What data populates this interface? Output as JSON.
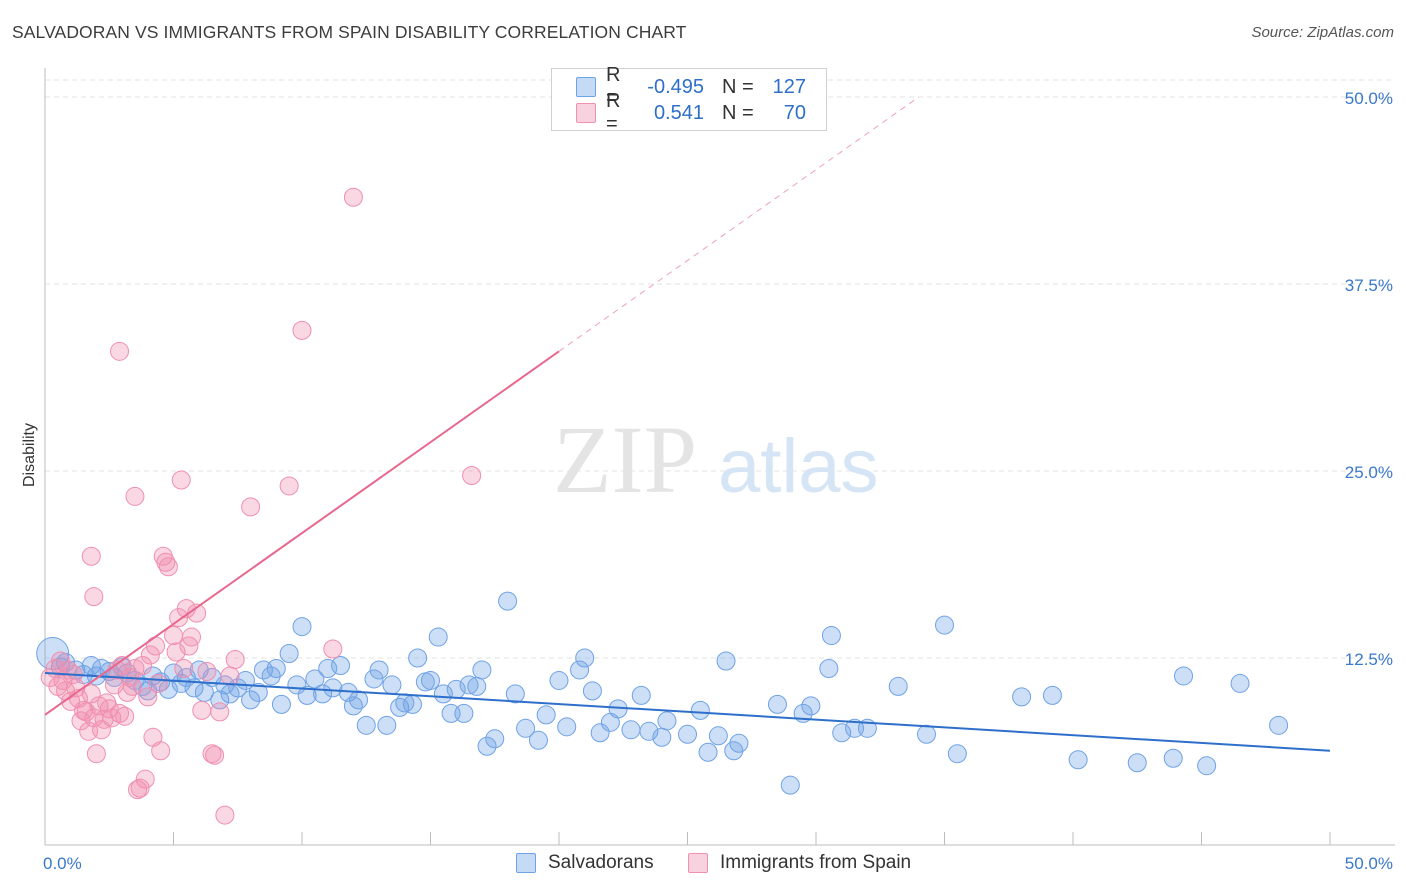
{
  "title": "SALVADORAN VS IMMIGRANTS FROM SPAIN DISABILITY CORRELATION CHART",
  "source": "Source: ZipAtlas.com",
  "watermark": {
    "zip": "ZIP",
    "atlas": "atlas"
  },
  "legend": {
    "rows": [
      {
        "r_label": "R =",
        "r_value": "-0.495",
        "n_label": "N =",
        "n_value": "127",
        "color": "#6fa2e6"
      },
      {
        "r_label": "R =",
        "r_value": "0.541",
        "n_label": "N =",
        "n_value": "70",
        "color": "#f08fb0"
      }
    ]
  },
  "bottom_legend": [
    {
      "label": "Salvadorans",
      "color": "#6fa2e6"
    },
    {
      "label": "Immigrants from Spain",
      "color": "#f08fb0"
    }
  ],
  "chart_data": {
    "type": "scatter",
    "title": "SALVADORAN VS IMMIGRANTS FROM SPAIN DISABILITY CORRELATION CHART",
    "xlabel": "",
    "ylabel": "Disability",
    "xlim": [
      0,
      50
    ],
    "ylim": [
      0,
      50
    ],
    "x_tick_labels": [
      "0.0%",
      "50.0%"
    ],
    "y_tick_labels": [
      "12.5%",
      "25.0%",
      "37.5%",
      "50.0%"
    ],
    "y_ticks": [
      12.5,
      25,
      37.5,
      50
    ],
    "grid": true,
    "series": [
      {
        "name": "Salvadorans",
        "color": "#6fa2e6",
        "line_color": "#2e6fcb",
        "trend": {
          "x0": 0,
          "y0": 11.5,
          "x1": 50,
          "y1": 6.3
        },
        "points": [
          [
            0.3,
            12.8
          ],
          [
            0.6,
            11.9
          ],
          [
            0.8,
            12.2
          ],
          [
            1.2,
            11.7
          ],
          [
            1.5,
            11.4
          ],
          [
            1.8,
            12.0
          ],
          [
            2.0,
            11.3
          ],
          [
            2.2,
            11.8
          ],
          [
            2.5,
            11.6
          ],
          [
            2.7,
            11.2
          ],
          [
            3.0,
            11.9
          ],
          [
            3.2,
            11.5
          ],
          [
            3.5,
            11.0
          ],
          [
            3.8,
            10.6
          ],
          [
            4.0,
            10.3
          ],
          [
            4.2,
            11.3
          ],
          [
            4.5,
            10.9
          ],
          [
            4.8,
            10.4
          ],
          [
            5.0,
            11.5
          ],
          [
            5.3,
            10.8
          ],
          [
            5.5,
            11.2
          ],
          [
            5.8,
            10.5
          ],
          [
            6.0,
            11.7
          ],
          [
            6.2,
            10.2
          ],
          [
            6.5,
            11.2
          ],
          [
            6.8,
            9.7
          ],
          [
            7.0,
            10.7
          ],
          [
            7.2,
            10.1
          ],
          [
            7.5,
            10.5
          ],
          [
            7.8,
            11.0
          ],
          [
            8.0,
            9.7
          ],
          [
            8.3,
            10.2
          ],
          [
            8.5,
            11.7
          ],
          [
            8.8,
            11.3
          ],
          [
            9.0,
            11.8
          ],
          [
            9.2,
            9.4
          ],
          [
            9.5,
            12.8
          ],
          [
            9.8,
            10.7
          ],
          [
            10.0,
            14.6
          ],
          [
            10.2,
            10.0
          ],
          [
            10.5,
            11.1
          ],
          [
            10.8,
            10.1
          ],
          [
            11.0,
            11.8
          ],
          [
            11.2,
            10.5
          ],
          [
            11.5,
            12.0
          ],
          [
            11.8,
            10.2
          ],
          [
            12.0,
            9.3
          ],
          [
            12.2,
            9.7
          ],
          [
            12.5,
            8.0
          ],
          [
            12.8,
            11.1
          ],
          [
            13.0,
            11.7
          ],
          [
            13.3,
            8.0
          ],
          [
            13.5,
            10.7
          ],
          [
            13.8,
            9.2
          ],
          [
            14.0,
            9.5
          ],
          [
            14.3,
            9.4
          ],
          [
            14.5,
            12.5
          ],
          [
            14.8,
            10.9
          ],
          [
            15.0,
            11.0
          ],
          [
            15.3,
            13.9
          ],
          [
            15.5,
            10.1
          ],
          [
            15.8,
            8.8
          ],
          [
            16.0,
            10.4
          ],
          [
            16.3,
            8.8
          ],
          [
            16.5,
            10.7
          ],
          [
            16.8,
            10.6
          ],
          [
            17.0,
            11.7
          ],
          [
            17.2,
            6.6
          ],
          [
            17.5,
            7.1
          ],
          [
            18.0,
            16.3
          ],
          [
            18.3,
            10.1
          ],
          [
            18.7,
            7.8
          ],
          [
            19.2,
            7.0
          ],
          [
            19.5,
            8.7
          ],
          [
            20.0,
            11.0
          ],
          [
            20.3,
            7.9
          ],
          [
            20.8,
            11.7
          ],
          [
            21.0,
            12.5
          ],
          [
            21.3,
            10.3
          ],
          [
            21.6,
            7.5
          ],
          [
            22.0,
            8.2
          ],
          [
            22.3,
            9.1
          ],
          [
            22.8,
            7.7
          ],
          [
            23.2,
            10.0
          ],
          [
            23.5,
            7.6
          ],
          [
            24.0,
            7.2
          ],
          [
            24.2,
            8.3
          ],
          [
            25.0,
            7.4
          ],
          [
            25.5,
            9.0
          ],
          [
            25.8,
            6.2
          ],
          [
            26.2,
            7.3
          ],
          [
            26.5,
            12.3
          ],
          [
            26.8,
            6.3
          ],
          [
            27.0,
            6.8
          ],
          [
            28.5,
            9.4
          ],
          [
            29.0,
            4.0
          ],
          [
            29.5,
            8.8
          ],
          [
            29.8,
            9.3
          ],
          [
            30.5,
            11.8
          ],
          [
            30.6,
            14.0
          ],
          [
            31.0,
            7.5
          ],
          [
            31.5,
            7.8
          ],
          [
            32.0,
            7.8
          ],
          [
            33.2,
            10.6
          ],
          [
            34.3,
            7.4
          ],
          [
            35.0,
            14.7
          ],
          [
            35.5,
            6.1
          ],
          [
            38.0,
            9.9
          ],
          [
            39.2,
            10.0
          ],
          [
            40.2,
            5.7
          ],
          [
            42.5,
            5.5
          ],
          [
            43.9,
            5.8
          ],
          [
            44.3,
            11.3
          ],
          [
            45.2,
            5.3
          ],
          [
            46.5,
            10.8
          ],
          [
            48.0,
            8.0
          ]
        ]
      },
      {
        "name": "Immigrants from Spain",
        "color": "#f08fb0",
        "line_color": "#e8678f",
        "trend": {
          "x0": 0,
          "y0": 8.7,
          "x1": 20,
          "y1": 33.0
        },
        "trend_ext": {
          "x0": 20,
          "y0": 33.0,
          "x1": 34,
          "y1": 50.0
        },
        "points": [
          [
            0.2,
            11.2
          ],
          [
            0.4,
            11.8
          ],
          [
            0.5,
            10.6
          ],
          [
            0.6,
            12.3
          ],
          [
            0.7,
            11.0
          ],
          [
            0.8,
            10.3
          ],
          [
            0.9,
            11.7
          ],
          [
            1.0,
            9.6
          ],
          [
            1.1,
            11.4
          ],
          [
            1.2,
            10.5
          ],
          [
            1.3,
            9.8
          ],
          [
            1.4,
            8.3
          ],
          [
            1.5,
            9.0
          ],
          [
            1.6,
            8.9
          ],
          [
            1.7,
            7.6
          ],
          [
            1.8,
            10.1
          ],
          [
            1.9,
            8.5
          ],
          [
            2.0,
            6.1
          ],
          [
            2.1,
            9.3
          ],
          [
            2.2,
            7.7
          ],
          [
            2.3,
            8.4
          ],
          [
            2.4,
            9.5
          ],
          [
            2.5,
            9.1
          ],
          [
            2.6,
            8.5
          ],
          [
            2.7,
            10.7
          ],
          [
            2.8,
            11.7
          ],
          [
            2.9,
            8.8
          ],
          [
            3.0,
            12.0
          ],
          [
            3.1,
            8.6
          ],
          [
            3.2,
            10.2
          ],
          [
            3.3,
            11.2
          ],
          [
            3.4,
            10.6
          ],
          [
            3.5,
            11.8
          ],
          [
            3.6,
            3.7
          ],
          [
            3.7,
            3.8
          ],
          [
            3.8,
            12.0
          ],
          [
            3.9,
            4.4
          ],
          [
            4.0,
            9.9
          ],
          [
            4.1,
            12.7
          ],
          [
            4.2,
            7.2
          ],
          [
            4.3,
            13.3
          ],
          [
            4.4,
            10.8
          ],
          [
            4.5,
            6.3
          ],
          [
            4.6,
            19.3
          ],
          [
            4.7,
            18.9
          ],
          [
            4.8,
            18.6
          ],
          [
            5.0,
            14.0
          ],
          [
            5.1,
            12.9
          ],
          [
            5.2,
            15.2
          ],
          [
            5.4,
            11.8
          ],
          [
            5.5,
            15.8
          ],
          [
            5.6,
            13.3
          ],
          [
            5.7,
            13.9
          ],
          [
            5.9,
            15.5
          ],
          [
            6.1,
            9.0
          ],
          [
            6.3,
            11.6
          ],
          [
            6.5,
            6.1
          ],
          [
            6.6,
            6.0
          ],
          [
            6.8,
            8.9
          ],
          [
            7.0,
            2.0
          ],
          [
            7.2,
            11.3
          ],
          [
            7.4,
            12.4
          ],
          [
            8.0,
            22.6
          ],
          [
            9.5,
            24.0
          ],
          [
            10.0,
            34.4
          ],
          [
            11.2,
            13.1
          ],
          [
            12.0,
            43.3
          ],
          [
            16.6,
            24.7
          ],
          [
            3.5,
            23.3
          ],
          [
            5.3,
            24.4
          ],
          [
            2.9,
            33.0
          ],
          [
            1.8,
            19.3
          ],
          [
            1.9,
            16.6
          ]
        ]
      }
    ]
  }
}
